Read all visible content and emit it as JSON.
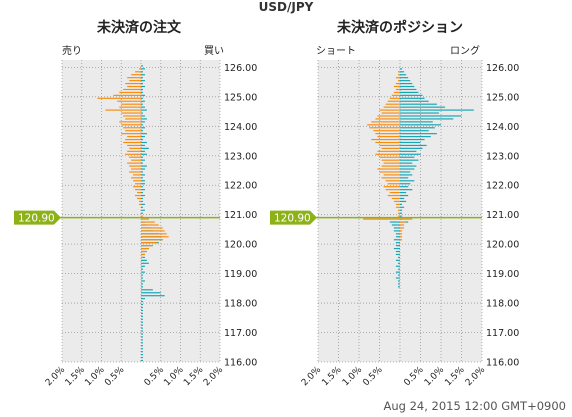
{
  "header": {
    "pair": "USD/JPY"
  },
  "footer": {
    "timestamp": "Aug 24, 2015 12:00 GMT+0900"
  },
  "colors": {
    "sell": "#f98c0f",
    "buy": "#16a5b5",
    "price_line": "#8db218",
    "panel_bg": "#ebebeb"
  },
  "chart_data": [
    {
      "type": "bar",
      "orientation": "horizontal",
      "title": "未決済の注文",
      "left_label": "売り",
      "right_label": "買い",
      "current_price": "120.90",
      "current_price_value": 120.9,
      "ylim": [
        116.0,
        126.25
      ],
      "yticks": [
        "116.00",
        "117.00",
        "118.00",
        "119.00",
        "120.00",
        "121.00",
        "122.00",
        "123.00",
        "124.00",
        "125.00",
        "126.00"
      ],
      "xticks": [
        "2.0%",
        "1.5%",
        "1.0%",
        "0.5%",
        "",
        "0.5%",
        "1.0%",
        "1.5%",
        "2.0%"
      ],
      "xlim": [
        -2.0,
        2.0
      ],
      "bucket": 0.05,
      "series": [
        {
          "name": "売り",
          "price": [
            126.05,
            125.95,
            125.85,
            125.75,
            125.65,
            125.55,
            125.45,
            125.35,
            125.25,
            125.15,
            125.05,
            124.95,
            124.85,
            124.75,
            124.65,
            124.55,
            124.45,
            124.35,
            124.25,
            124.15,
            124.05,
            123.95,
            123.85,
            123.75,
            123.65,
            123.55,
            123.45,
            123.35,
            123.25,
            123.15,
            123.05,
            122.95,
            122.85,
            122.75,
            122.65,
            122.55,
            122.45,
            122.35,
            122.25,
            122.15,
            122.05,
            121.95,
            121.85,
            121.75,
            121.65,
            121.55,
            121.45,
            121.35,
            121.25,
            121.15,
            121.05,
            120.95,
            120.85,
            120.75,
            120.65,
            120.55,
            120.45,
            120.35,
            120.25,
            120.15,
            120.05,
            119.95,
            119.85,
            119.75,
            119.65,
            119.55,
            119.45
          ],
          "values": [
            0.0,
            0.05,
            0.15,
            0.25,
            0.35,
            0.3,
            0.4,
            0.35,
            0.45,
            0.55,
            0.7,
            1.1,
            0.6,
            0.5,
            0.55,
            0.9,
            0.5,
            0.45,
            0.4,
            0.55,
            0.5,
            0.45,
            0.4,
            0.5,
            0.35,
            0.4,
            0.45,
            0.35,
            0.3,
            0.35,
            0.4,
            0.3,
            0.25,
            0.35,
            0.3,
            0.25,
            0.3,
            0.2,
            0.25,
            0.2,
            0.15,
            0.2,
            0.15,
            0.1,
            0.15,
            0.1,
            0.05,
            0.05,
            0.0,
            0.0,
            0.0,
            0.0,
            0.0,
            0.0,
            0.0,
            0.0,
            0.0,
            0.0,
            0.0,
            0.0,
            0.0,
            0.0,
            0.0,
            0.0,
            0.0,
            0.0,
            0.0
          ]
        },
        {
          "name": "買い",
          "price": [
            126.05,
            125.95,
            125.85,
            125.75,
            125.65,
            125.55,
            125.45,
            125.35,
            125.25,
            125.15,
            125.05,
            124.95,
            124.85,
            124.75,
            124.65,
            124.55,
            124.45,
            124.35,
            124.25,
            124.15,
            124.05,
            123.95,
            123.85,
            123.75,
            123.65,
            123.55,
            123.45,
            123.35,
            123.25,
            123.15,
            123.05,
            122.95,
            122.85,
            122.75,
            122.65,
            122.55,
            122.45,
            122.35,
            122.25,
            122.15,
            122.05,
            121.95,
            121.85,
            121.75,
            121.65,
            121.55,
            121.45,
            121.35,
            121.25,
            121.15,
            121.05,
            120.95,
            120.85,
            120.75,
            120.65,
            120.55,
            120.45,
            120.35,
            120.25,
            120.15,
            120.05,
            119.95,
            119.85,
            119.75,
            119.65,
            119.55,
            119.45,
            119.35,
            119.25,
            119.15,
            119.05,
            118.95,
            118.85,
            118.75,
            118.65,
            118.55,
            118.45,
            118.35,
            118.25,
            118.15,
            118.05,
            117.95,
            117.85,
            117.75,
            117.65,
            117.55,
            117.45,
            117.35,
            117.25,
            117.15,
            117.05,
            116.95,
            116.85,
            116.75,
            116.65,
            116.55,
            116.45,
            116.35,
            116.25,
            116.15,
            116.05
          ],
          "values": [
            0.0,
            0.0,
            0.0,
            0.0,
            0.0,
            0.0,
            0.0,
            0.0,
            0.0,
            0.0,
            0.0,
            0.0,
            0.0,
            0.0,
            0.0,
            0.0,
            0.0,
            0.0,
            0.0,
            0.0,
            0.0,
            0.0,
            0.0,
            0.0,
            0.0,
            0.0,
            0.0,
            0.0,
            0.0,
            0.0,
            0.0,
            0.0,
            0.0,
            0.0,
            0.0,
            0.0,
            0.0,
            0.0,
            0.0,
            0.0,
            0.0,
            0.0,
            0.0,
            0.0,
            0.0,
            0.0,
            0.0,
            0.0,
            0.0,
            0.0,
            0.0,
            0.0,
            0.0,
            0.0,
            0.0,
            0.0,
            0.0,
            0.0,
            0.0,
            0.0,
            0.0,
            0.0,
            0.0,
            0.0,
            0.0,
            0.0,
            0.0,
            0.0,
            0.0,
            0.0,
            0.0,
            0.0,
            0.0,
            0.0,
            0.0,
            0.0,
            0.0,
            0.0,
            0.0,
            0.0,
            0.0,
            0.0,
            0.0,
            0.0,
            0.0,
            0.0,
            0.0,
            0.0,
            0.0,
            0.0,
            0.0,
            0.0,
            0.0,
            0.0,
            0.0,
            0.0,
            0.0,
            0.0,
            0.0,
            0.0,
            0.0
          ]
        }
      ],
      "buy_orders": {
        "price": [
          126.05,
          125.95,
          125.85,
          125.75,
          125.65,
          125.55,
          125.45,
          125.35,
          125.25,
          125.15,
          125.05,
          124.95,
          124.85,
          124.75,
          124.65,
          124.55,
          124.45,
          124.35,
          124.25,
          124.15,
          124.05,
          123.95,
          123.85,
          123.75,
          123.65,
          123.55,
          123.45,
          123.35,
          123.25,
          123.15,
          123.05,
          122.95,
          122.85,
          122.75,
          122.65,
          122.55,
          122.45,
          122.35,
          122.25,
          122.15,
          122.05,
          121.95,
          121.85,
          121.75,
          121.65,
          121.55,
          121.45,
          121.35,
          121.25,
          121.15,
          121.05,
          120.95,
          120.85,
          120.75,
          120.65,
          120.55,
          120.45,
          120.35,
          120.25,
          120.15,
          120.05,
          119.95,
          119.85,
          119.75,
          119.65,
          119.55,
          119.45,
          119.35,
          119.25,
          119.15,
          119.05,
          118.95,
          118.85,
          118.75,
          118.65,
          118.55,
          118.45,
          118.35,
          118.25,
          118.15,
          118.05,
          117.95,
          117.85,
          117.75,
          117.65,
          117.55,
          117.45,
          117.35,
          117.25,
          117.15,
          117.05,
          116.95,
          116.85,
          116.75,
          116.65,
          116.55,
          116.45,
          116.35,
          116.25,
          116.15,
          116.05
        ],
        "values": [
          0.05,
          0.1,
          0.05,
          0.1,
          0.05,
          0.1,
          0.05,
          0.1,
          0.05,
          0.05,
          0.1,
          0.05,
          0.1,
          0.05,
          0.1,
          0.15,
          0.05,
          0.1,
          0.15,
          0.1,
          0.05,
          0.1,
          0.05,
          0.15,
          0.1,
          0.05,
          0.15,
          0.1,
          0.2,
          0.1,
          0.15,
          0.05,
          0.1,
          0.05,
          0.15,
          0.1,
          0.05,
          0.1,
          0.05,
          0.1,
          0.1,
          0.05,
          0.1,
          0.05,
          0.1,
          0.05,
          0.05,
          0.1,
          0.05,
          0.1,
          0.05,
          0.0,
          0.0,
          0.1,
          0.15,
          0.25,
          0.3,
          0.45,
          0.5,
          0.55,
          0.45,
          0.3,
          0.2,
          0.15,
          0.1,
          0.1,
          0.15,
          0.2,
          0.1,
          0.05,
          0.1,
          0.05,
          0.05,
          0.1,
          0.05,
          0.05,
          0.3,
          0.5,
          0.6,
          0.1,
          0.05,
          0.05,
          0.05,
          0.05,
          0.05,
          0.05,
          0.05,
          0.05,
          0.05,
          0.05,
          0.05,
          0.05,
          0.05,
          0.05,
          0.05,
          0.05,
          0.05,
          0.05,
          0.05,
          0.05,
          0.05
        ]
      },
      "sell_orders_below": {
        "price": [
          120.95,
          120.85,
          120.75,
          120.65,
          120.55,
          120.45,
          120.35,
          120.25,
          120.15,
          120.05,
          119.95,
          119.85,
          119.75,
          119.65,
          119.55
        ],
        "values": [
          0.05,
          0.2,
          0.35,
          0.45,
          0.55,
          0.6,
          0.65,
          0.7,
          0.55,
          0.4,
          0.3,
          0.2,
          0.15,
          0.1,
          0.05
        ]
      }
    },
    {
      "type": "bar",
      "orientation": "horizontal",
      "title": "未決済のポジション",
      "left_label": "ショート",
      "right_label": "ロング",
      "current_price": "120.90",
      "current_price_value": 120.9,
      "ylim": [
        116.0,
        126.25
      ],
      "yticks": [
        "116.00",
        "117.00",
        "118.00",
        "119.00",
        "120.00",
        "121.00",
        "122.00",
        "123.00",
        "124.00",
        "125.00",
        "126.00"
      ],
      "xticks": [
        "2.0%",
        "1.5%",
        "1.0%",
        "0.5%",
        "",
        "0.5%",
        "1.0%",
        "1.5%",
        "2.0%"
      ],
      "xlim": [
        -2.0,
        2.0
      ],
      "bucket": 0.05,
      "shorts": {
        "price": [
          125.85,
          125.75,
          125.65,
          125.55,
          125.45,
          125.35,
          125.25,
          125.15,
          125.05,
          124.95,
          124.85,
          124.75,
          124.65,
          124.55,
          124.45,
          124.35,
          124.25,
          124.15,
          124.05,
          123.95,
          123.85,
          123.75,
          123.65,
          123.55,
          123.45,
          123.35,
          123.25,
          123.15,
          123.05,
          122.95,
          122.85,
          122.75,
          122.65,
          122.55,
          122.45,
          122.35,
          122.25,
          122.15,
          122.05,
          121.95,
          121.85,
          121.75,
          121.65,
          121.55,
          121.45,
          121.35,
          121.25,
          121.15,
          121.05,
          120.95,
          120.85
        ],
        "values": [
          0.05,
          0.05,
          0.1,
          0.05,
          0.1,
          0.15,
          0.1,
          0.15,
          0.2,
          0.25,
          0.3,
          0.35,
          0.4,
          0.5,
          0.45,
          0.55,
          0.6,
          0.7,
          0.8,
          0.75,
          0.65,
          0.6,
          0.55,
          0.7,
          0.6,
          0.5,
          0.45,
          0.55,
          0.6,
          0.5,
          0.45,
          0.4,
          0.45,
          0.55,
          0.5,
          0.4,
          0.45,
          0.35,
          0.3,
          0.4,
          0.35,
          0.25,
          0.3,
          0.2,
          0.15,
          0.1,
          0.1,
          0.05,
          0.05,
          0.05,
          0.9
        ]
      },
      "longs": {
        "price": [
          125.95,
          125.85,
          125.75,
          125.65,
          125.55,
          125.45,
          125.35,
          125.25,
          125.15,
          125.05,
          124.95,
          124.85,
          124.75,
          124.65,
          124.55,
          124.45,
          124.35,
          124.25,
          124.15,
          124.05,
          123.95,
          123.85,
          123.75,
          123.65,
          123.55,
          123.45,
          123.35,
          123.25,
          123.15,
          123.05,
          122.95,
          122.85,
          122.75,
          122.65,
          122.55,
          122.45,
          122.35,
          122.25,
          122.15,
          122.05,
          121.95,
          121.85,
          121.75,
          121.65,
          121.55,
          121.45,
          121.35,
          121.25,
          121.15,
          121.05,
          120.95,
          120.85,
          120.75
        ],
        "values": [
          0.05,
          0.1,
          0.15,
          0.2,
          0.25,
          0.3,
          0.35,
          0.4,
          0.45,
          0.55,
          0.6,
          0.7,
          0.9,
          1.1,
          1.8,
          0.95,
          1.5,
          1.3,
          0.8,
          1.0,
          0.85,
          0.7,
          0.9,
          0.75,
          0.6,
          0.5,
          0.65,
          0.55,
          0.4,
          0.5,
          0.35,
          0.45,
          0.3,
          0.4,
          0.35,
          0.25,
          0.3,
          0.2,
          0.35,
          0.25,
          0.2,
          0.3,
          0.15,
          0.2,
          0.1,
          0.15,
          0.05,
          0.1,
          0.05,
          0.05,
          0.05,
          0.05,
          0.2
        ]
      },
      "shorts_below": {
        "price": [
          120.85,
          120.75,
          120.65,
          120.55,
          120.45,
          120.35,
          120.25,
          120.15
        ],
        "values": [
          0.3,
          0.15,
          0.1,
          0.1,
          0.05,
          0.05,
          0.05,
          0.05
        ]
      },
      "longs_below": {
        "price": [
          120.75,
          120.65,
          120.55,
          120.45,
          120.35,
          120.25,
          120.15,
          120.05,
          119.95,
          119.85,
          119.75,
          119.65,
          119.55,
          119.45,
          119.35,
          119.25,
          119.15,
          119.05,
          118.95,
          118.85,
          118.75,
          118.65,
          118.55
        ],
        "values": [
          0.25,
          0.2,
          0.15,
          0.15,
          0.1,
          0.1,
          0.15,
          0.1,
          0.1,
          0.15,
          0.1,
          0.1,
          0.05,
          0.1,
          0.05,
          0.1,
          0.05,
          0.1,
          0.05,
          0.1,
          0.05,
          0.05,
          0.05
        ]
      }
    }
  ]
}
